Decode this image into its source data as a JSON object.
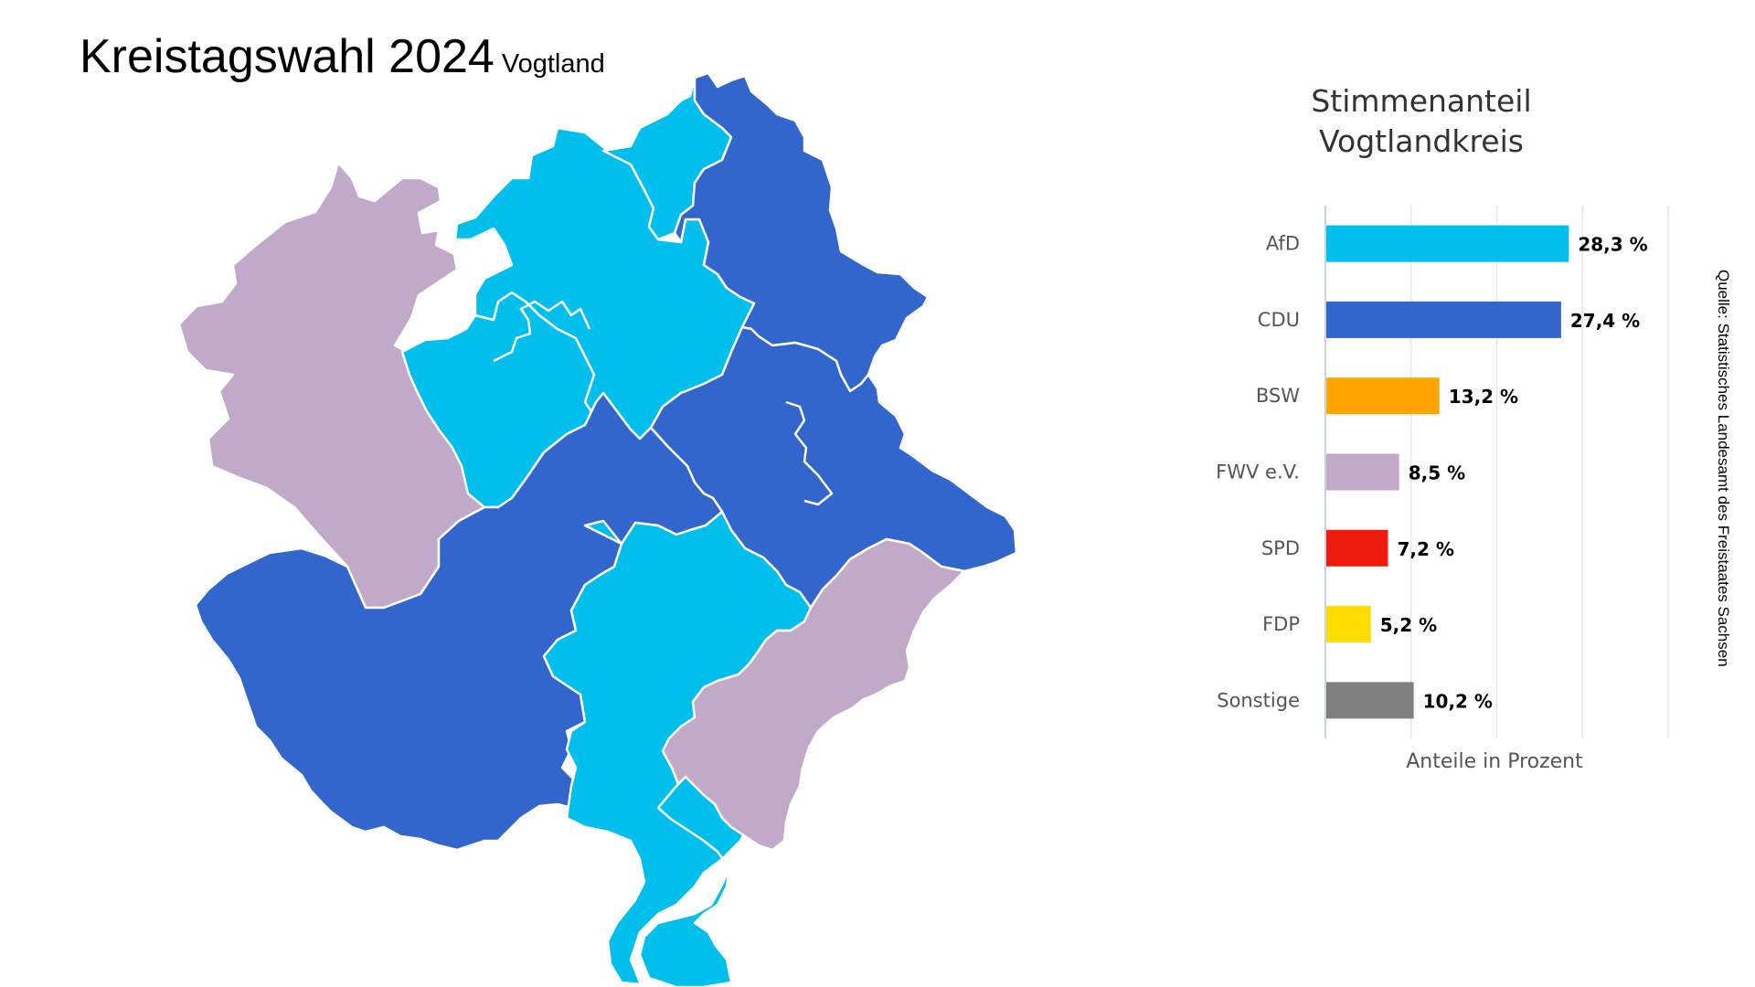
{
  "header": {
    "title": "Kreistagswahl 2024",
    "subtitle": "Vogtland"
  },
  "map": {
    "colors": {
      "AfD": "#00bfed",
      "CDU": "#3366cc",
      "FWV e.V.": "#c1a9c9",
      "border": "#ffffff"
    }
  },
  "chart_data": {
    "type": "bar",
    "orientation": "horizontal",
    "title": "Stimmenanteil Vogtlandkreis",
    "title_lines": [
      "Stimmenanteil",
      "Vogtlandkreis"
    ],
    "xlabel": "Anteile in Prozent",
    "ylabel": "",
    "xlim": [
      0,
      40
    ],
    "grid": true,
    "categories": [
      "AfD",
      "CDU",
      "BSW",
      "FWV e.V.",
      "SPD",
      "FDP",
      "Sonstige"
    ],
    "values": [
      28.3,
      27.4,
      13.2,
      8.5,
      7.2,
      5.2,
      10.2
    ],
    "value_labels": [
      "28,3 %",
      "27,4 %",
      "13,2 %",
      "8,5 %",
      "7,2 %",
      "5,2 %",
      "10,2 %"
    ],
    "colors": [
      "#00bfed",
      "#3366cc",
      "#ffa500",
      "#c1a9c9",
      "#ee1c0d",
      "#ffdd00",
      "#808080"
    ]
  },
  "source_note": "Quelle: Statistisches Landesamt des Freistaates Sachsen"
}
